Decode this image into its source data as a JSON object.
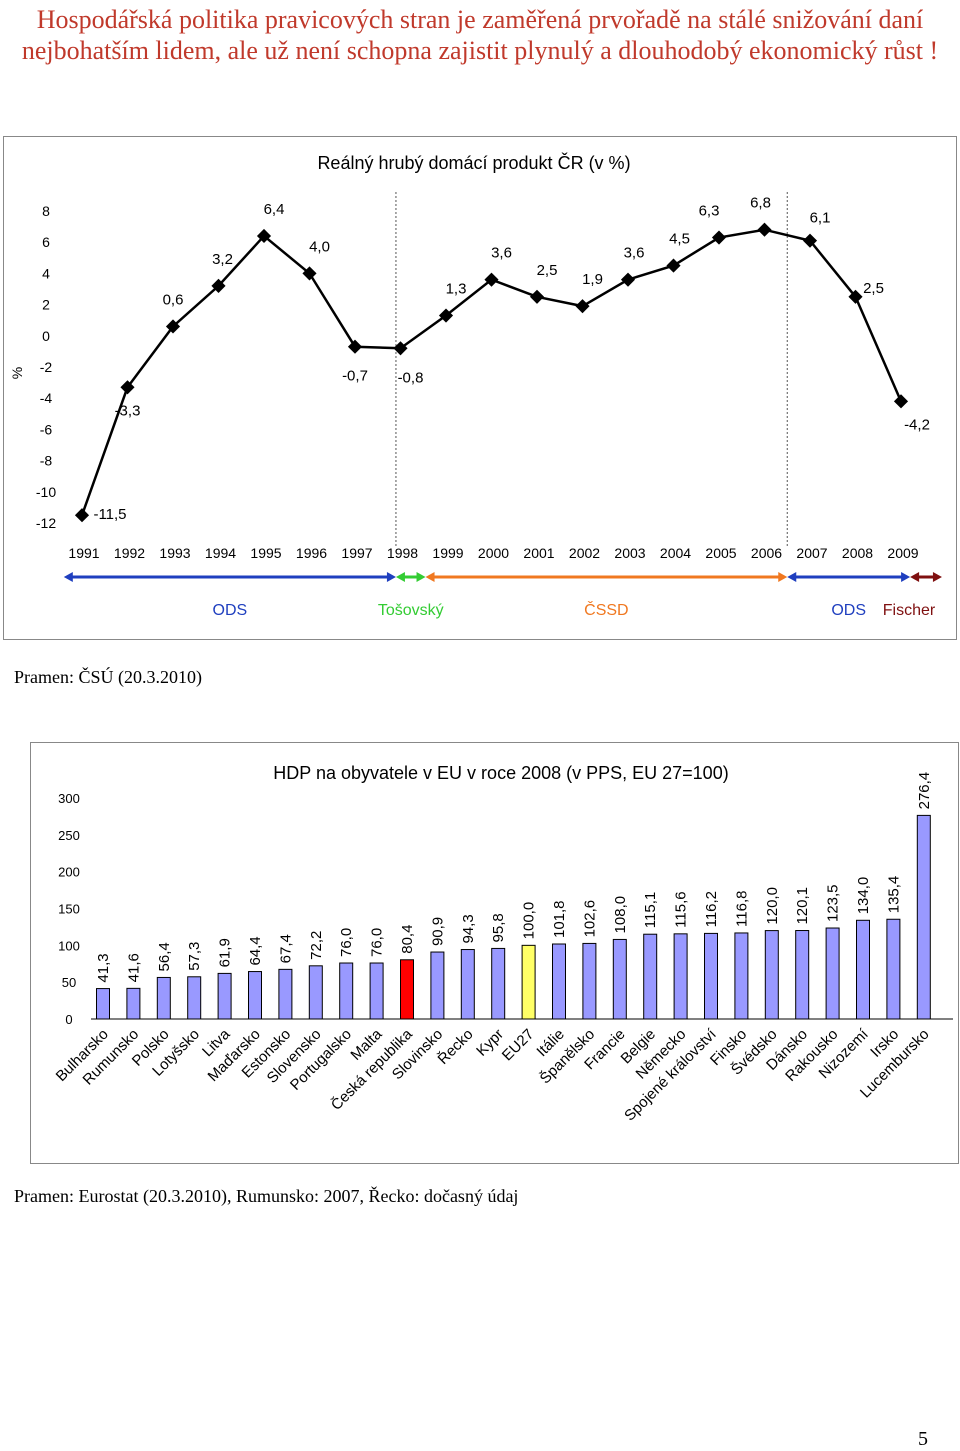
{
  "headline": "Hospodářská politika pravicových stran je zaměřená prvořadě na stálé snižování daní nejbohatším lidem, ale už není schopna zajistit plynulý a dlouhodobý ekonomický růst !",
  "source1": "Pramen: ČSÚ (20.3.2010)",
  "source2": "Pramen: Eurostat (20.3.2010), Rumunsko: 2007, Řecko: dočasný údaj",
  "page_number": "5",
  "colors": {
    "headline": "#c0392b",
    "bar": "#9999ff",
    "bar_cz": "#ff0000",
    "bar_eu": "#ffff66",
    "ods": "#1f3fbf",
    "tosovsky": "#33cc33",
    "cssd": "#f07820",
    "fischer": "#7f1010"
  },
  "chart_data": [
    {
      "type": "line",
      "title": "Reálný hrubý domácí produkt ČR (v %)",
      "ylabel": "%",
      "ylim": [
        -12,
        8
      ],
      "yticks": [
        "8",
        "6",
        "4",
        "2",
        "0",
        "-2",
        "-4",
        "-6",
        "-8",
        "-10",
        "-12"
      ],
      "x": [
        "1991",
        "1992",
        "1993",
        "1994",
        "1995",
        "1996",
        "1997",
        "1998",
        "1999",
        "2000",
        "2001",
        "2002",
        "2003",
        "2004",
        "2005",
        "2006",
        "2007",
        "2008",
        "2009"
      ],
      "values": [
        -11.5,
        -3.3,
        0.6,
        3.2,
        6.4,
        4.0,
        -0.7,
        -0.8,
        1.3,
        3.6,
        2.5,
        1.9,
        3.6,
        4.5,
        6.3,
        6.8,
        6.1,
        2.5,
        -4.2
      ],
      "labels": [
        "-11,5",
        "-3,3",
        "0,6",
        "3,2",
        "6,4",
        "4,0",
        "-0,7",
        "-0,8",
        "1,3",
        "3,6",
        "2,5",
        "1,9",
        "3,6",
        "4,5",
        "6,3",
        "6,8",
        "6,1",
        "2,5",
        "-4,2"
      ],
      "periods": [
        {
          "name": "ODS",
          "from": 1990.6,
          "to": 1997.9,
          "color": "#1f3fbf"
        },
        {
          "name": "Tošovský",
          "from": 1997.9,
          "to": 1998.55,
          "color": "#33cc33"
        },
        {
          "name": "ČSSD",
          "from": 1998.55,
          "to": 2006.5,
          "color": "#f07820"
        },
        {
          "name": "ODS",
          "from": 2006.5,
          "to": 2009.2,
          "color": "#1f3fbf"
        },
        {
          "name": "Fischer",
          "from": 2009.2,
          "to": 2009.9,
          "color": "#7f1010"
        }
      ]
    },
    {
      "type": "bar",
      "title": "HDP na obyvatele v EU v roce 2008 (v PPS, EU 27=100)",
      "ylim": [
        0,
        300
      ],
      "yticks": [
        "300",
        "250",
        "200",
        "150",
        "100",
        "50",
        "0"
      ],
      "categories": [
        "Bulharsko",
        "Rumunsko",
        "Polsko",
        "Lotyšsko",
        "Litva",
        "Maďarsko",
        "Estonsko",
        "Slovensko",
        "Portugalsko",
        "Malta",
        "Česká republika",
        "Slovinsko",
        "Řecko",
        "Kypr",
        "EU27",
        "Itálie",
        "Španělsko",
        "Francie",
        "Belgie",
        "Německo",
        "Spojené království",
        "Finsko",
        "Švédsko",
        "Dánsko",
        "Rakousko",
        "Nizozemí",
        "Irsko",
        "Lucembursko"
      ],
      "values": [
        41.3,
        41.6,
        56.4,
        57.3,
        61.9,
        64.4,
        67.4,
        72.2,
        76.0,
        76.0,
        80.4,
        90.9,
        94.3,
        95.8,
        100.0,
        101.8,
        102.6,
        108.0,
        115.1,
        115.6,
        116.2,
        116.8,
        120.0,
        120.1,
        123.5,
        134.0,
        135.4,
        276.4
      ],
      "labels": [
        "41,3",
        "41,6",
        "56,4",
        "57,3",
        "61,9",
        "64,4",
        "67,4",
        "72,2",
        "76,0",
        "76,0",
        "80,4",
        "90,9",
        "94,3",
        "95,8",
        "100,0",
        "101,8",
        "102,6",
        "108,0",
        "115,1",
        "115,6",
        "116,2",
        "116,8",
        "120,0",
        "120,1",
        "123,5",
        "134,0",
        "135,4",
        "276,4"
      ],
      "highlight": {
        "Česká republika": "#ff0000",
        "EU27": "#ffff66"
      }
    }
  ]
}
